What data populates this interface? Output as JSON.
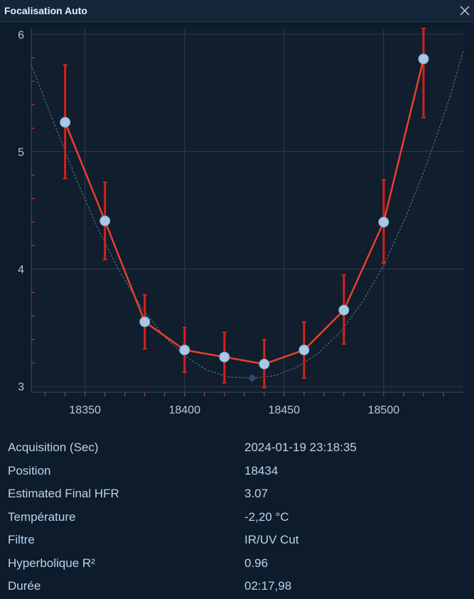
{
  "window": {
    "title": "Focalisation Auto",
    "close_icon": "close-icon"
  },
  "chart_data": {
    "type": "scatter",
    "title": "",
    "xlabel": "",
    "ylabel": "",
    "xlim": [
      18323,
      18540
    ],
    "ylim": [
      2.95,
      6.05
    ],
    "x_ticks": [
      18350,
      18400,
      18450,
      18500
    ],
    "y_ticks": [
      3,
      4,
      5,
      6
    ],
    "grid": true,
    "series": [
      {
        "x": [
          18340,
          18360,
          18380,
          18400,
          18420,
          18440,
          18460,
          18480,
          18500,
          18520
        ],
        "y": [
          5.25,
          4.41,
          3.55,
          3.31,
          3.25,
          3.19,
          3.31,
          3.65,
          4.4,
          5.79
        ],
        "err_low": [
          4.77,
          4.08,
          3.32,
          3.12,
          3.03,
          2.99,
          3.07,
          3.36,
          4.05,
          5.29
        ],
        "err_high": [
          5.74,
          4.74,
          3.78,
          3.5,
          3.46,
          3.4,
          3.55,
          3.95,
          4.76,
          6.05
        ]
      },
      {
        "x": [
          18323,
          18334,
          18345,
          18356,
          18367,
          18378,
          18389,
          18400,
          18411,
          18422,
          18434,
          18445,
          18456,
          18467,
          18478,
          18489,
          18500,
          18511,
          18522,
          18533,
          18540
        ],
        "y": [
          5.74,
          5.26,
          4.79,
          4.36,
          3.99,
          3.68,
          3.44,
          3.26,
          3.14,
          3.08,
          3.07,
          3.09,
          3.16,
          3.28,
          3.46,
          3.71,
          4.03,
          4.44,
          4.91,
          5.45,
          5.86
        ]
      }
    ],
    "estimated_minimum": {
      "x": 18434,
      "y": 3.07
    },
    "colors": {
      "series": "#e8402a",
      "errors": "#d4221a",
      "points": "#a8c8e6",
      "fit": "#4a6a8a",
      "minimum": "#34486a",
      "grid": "#2c3f52",
      "axis_text": "#b9c9d9"
    }
  },
  "info": [
    {
      "label": "Acquisition (Sec)",
      "value": "2024-01-19 23:18:35"
    },
    {
      "label": "Position",
      "value": "18434"
    },
    {
      "label": "Estimated Final HFR",
      "value": "3.07"
    },
    {
      "label": "Température",
      "value": "-2,20 °C"
    },
    {
      "label": "Filtre",
      "value": "IR/UV Cut"
    },
    {
      "label": "Hyperbolique R²",
      "value": "0.96"
    },
    {
      "label": "Durée",
      "value": "02:17,98"
    }
  ]
}
